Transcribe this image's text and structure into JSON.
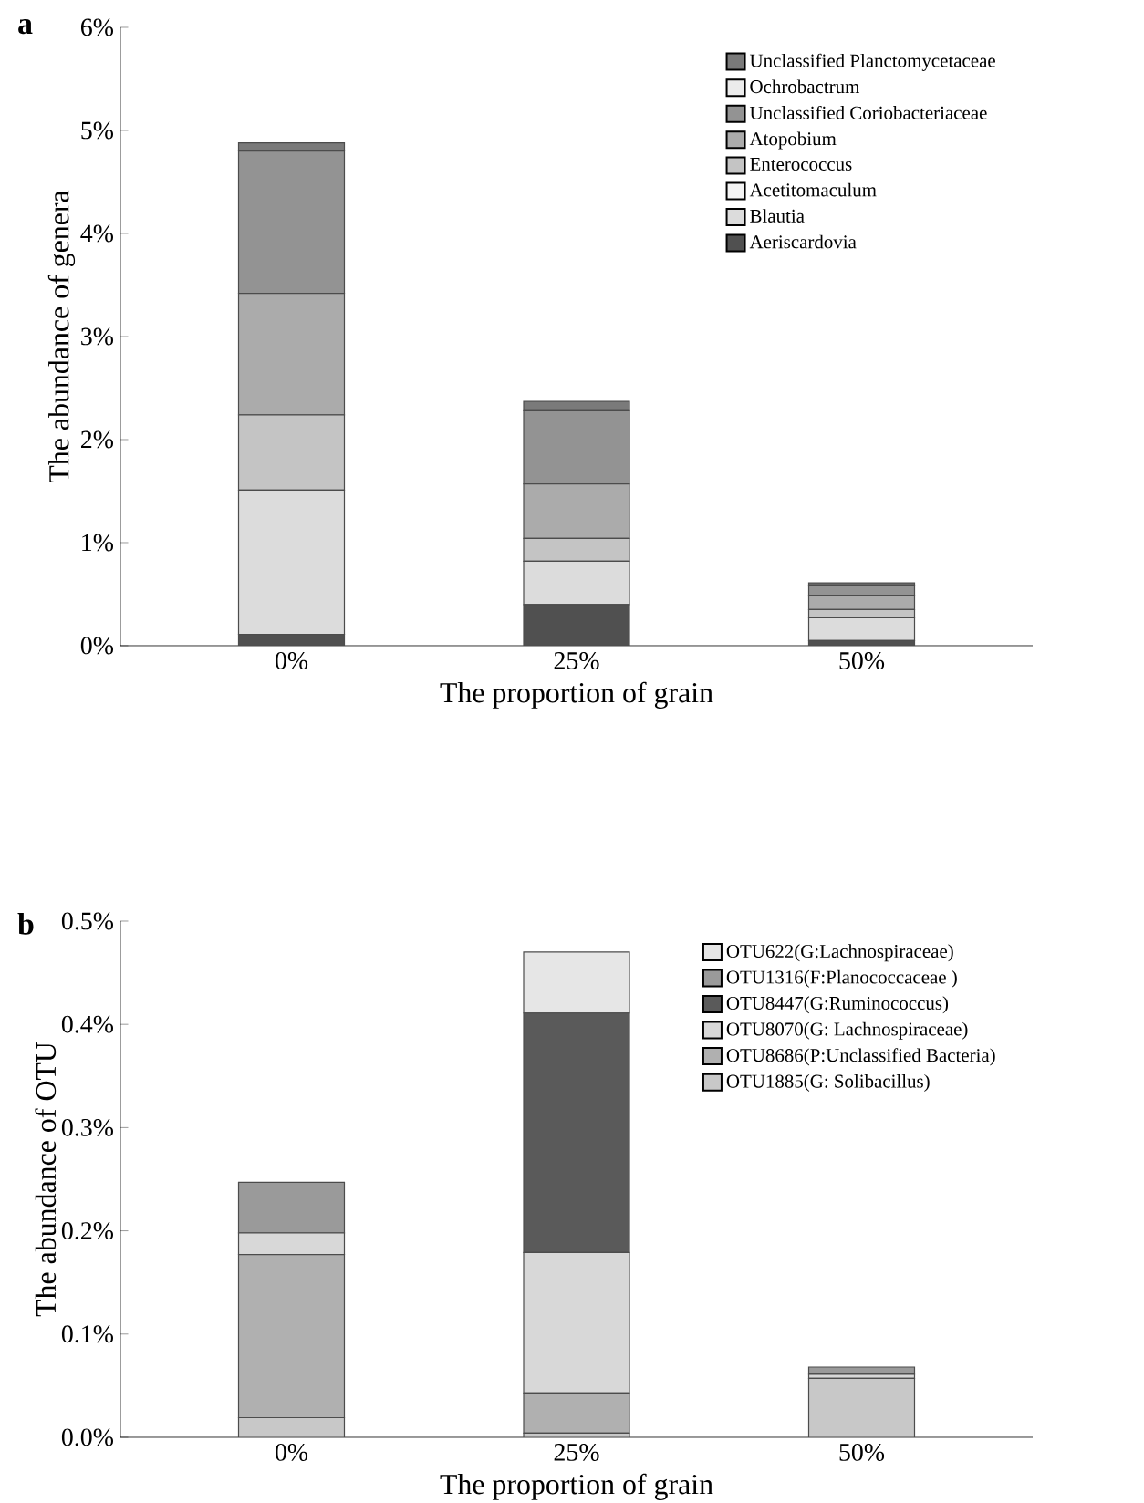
{
  "chart_data": [
    {
      "type": "bar",
      "title": "a",
      "xlabel": "The proportion of grain",
      "ylabel": "The abundance of genera",
      "stacked": true,
      "legend": "top right",
      "categories": [
        "0%",
        "25%",
        "50%"
      ],
      "ylim": [
        0,
        6
      ],
      "yticks": [
        {
          "value": 0,
          "label": "0%"
        },
        {
          "value": 1,
          "label": "1%"
        },
        {
          "value": 2,
          "label": "2%"
        },
        {
          "value": 3,
          "label": "3%"
        },
        {
          "value": 4,
          "label": "4%"
        },
        {
          "value": 5,
          "label": "5%"
        },
        {
          "value": 6,
          "label": "6%"
        }
      ],
      "series": [
        {
          "name": "Aeriscardovia",
          "color": "#505050",
          "values": [
            0.11,
            0.4,
            0.05
          ]
        },
        {
          "name": "Blautia",
          "color": "#dcdcdc",
          "values": [
            1.4,
            0.42,
            0.22
          ]
        },
        {
          "name": "Acetitomaculum",
          "color": "#f4f4f4",
          "values": [
            0,
            0,
            0
          ]
        },
        {
          "name": "Enterococcus",
          "color": "#c4c4c4",
          "values": [
            0.73,
            0.22,
            0.08
          ]
        },
        {
          "name": "Atopobium",
          "color": "#ababab",
          "values": [
            1.18,
            0.53,
            0.14
          ]
        },
        {
          "name": "Unclassified Coriobacteriaceae",
          "color": "#939393",
          "values": [
            1.38,
            0.71,
            0.1
          ]
        },
        {
          "name": "Ochrobactrum",
          "color": "#ececec",
          "values": [
            0,
            0,
            0
          ]
        },
        {
          "name": "Unclassified Planctomycetaceae",
          "color": "#7a7a7a",
          "values": [
            0.08,
            0.09,
            0.02
          ]
        }
      ]
    },
    {
      "type": "bar",
      "title": "b",
      "xlabel": "The proportion of grain",
      "ylabel": "The abundance of OTU",
      "stacked": true,
      "legend": "top right",
      "categories": [
        "0%",
        "25%",
        "50%"
      ],
      "ylim": [
        0,
        0.5
      ],
      "yticks": [
        {
          "value": 0,
          "label": "0.0%"
        },
        {
          "value": 0.1,
          "label": "0.1%"
        },
        {
          "value": 0.2,
          "label": "0.2%"
        },
        {
          "value": 0.3,
          "label": "0.3%"
        },
        {
          "value": 0.4,
          "label": "0.4%"
        },
        {
          "value": 0.5,
          "label": "0.5%"
        }
      ],
      "series": [
        {
          "name": "OTU1885(G: Solibacillus)",
          "color": "#c8c8c8",
          "values": [
            0.019,
            0.004,
            0.057
          ]
        },
        {
          "name": "OTU8686(P:Unclassified Bacteria)",
          "color": "#b0b0b0",
          "values": [
            0.158,
            0.039,
            0
          ]
        },
        {
          "name": "OTU8070(G: Lachnospiraceae)",
          "color": "#d8d8d8",
          "values": [
            0.021,
            0.136,
            0.004
          ]
        },
        {
          "name": "OTU8447(G:Ruminococcus)",
          "color": "#5a5a5a",
          "values": [
            0,
            0.232,
            0
          ]
        },
        {
          "name": "OTU1316(F:Planococcaceae )",
          "color": "#9a9a9a",
          "values": [
            0.049,
            0,
            0.007
          ]
        },
        {
          "name": "OTU622(G:Lachnospiraceae)",
          "color": "#e6e6e6",
          "values": [
            0,
            0.059,
            0
          ]
        }
      ]
    }
  ]
}
